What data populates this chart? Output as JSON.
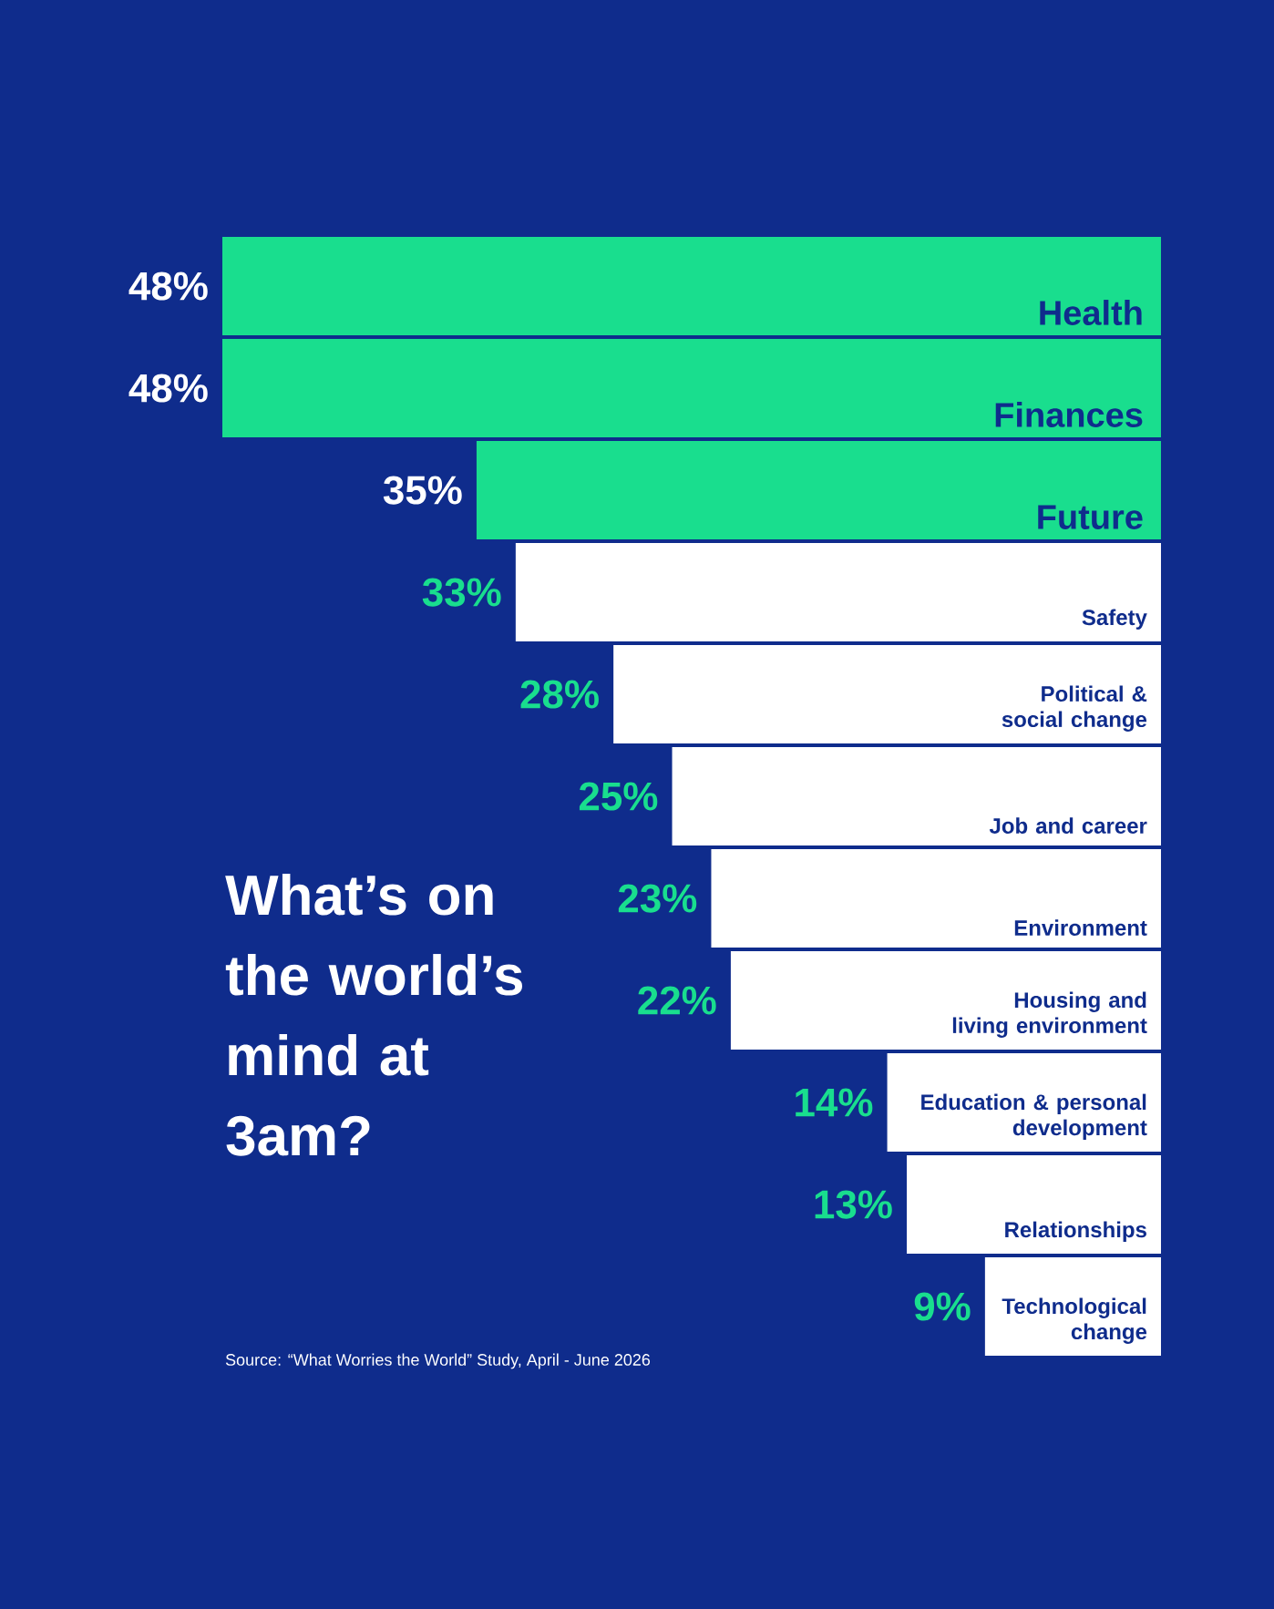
{
  "chart_data": {
    "type": "bar",
    "orientation": "horizontal",
    "title": "What’s on the world’s mind at 3am?",
    "categories": [
      "Health",
      "Finances",
      "Future",
      "Safety",
      "Political & social change",
      "Job and career",
      "Environment",
      "Housing and living environment",
      "Education & personal development",
      "Relationships",
      "Technological change"
    ],
    "values": [
      48,
      48,
      35,
      33,
      28,
      25,
      23,
      22,
      14,
      13,
      9
    ],
    "value_labels": [
      "48%",
      "48%",
      "35%",
      "33%",
      "28%",
      "25%",
      "23%",
      "22%",
      "14%",
      "13%",
      "9%"
    ],
    "colors": [
      "#19de8e",
      "#19de8e",
      "#19de8e",
      "#ffffff",
      "#ffffff",
      "#ffffff",
      "#ffffff",
      "#ffffff",
      "#ffffff",
      "#ffffff",
      "#ffffff"
    ],
    "annotations": [
      "Source: “What Worries the World” Study, April - June 2026"
    ]
  }
}
